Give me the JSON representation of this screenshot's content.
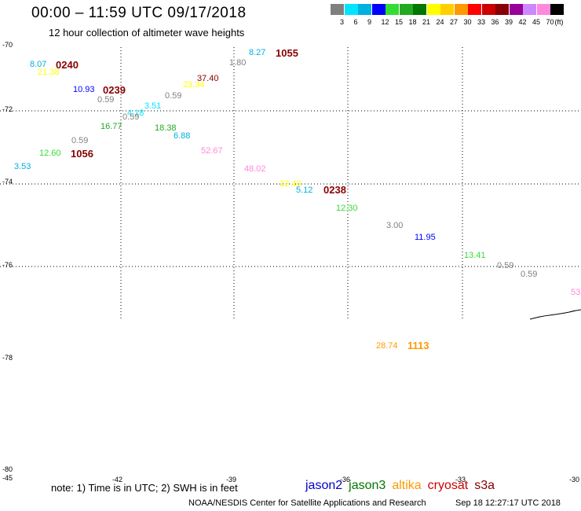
{
  "title": "00:00 – 11:59 UTC 09/17/2018",
  "subtitle": "12 hour collection of altimeter wave heights",
  "legend": {
    "unit": "(ft)",
    "bins": [
      {
        "label": "3",
        "color": "#808080"
      },
      {
        "label": "6",
        "color": "#00e5ff"
      },
      {
        "label": "9",
        "color": "#00b0e0"
      },
      {
        "label": "12",
        "color": "#0000ff"
      },
      {
        "label": "15",
        "color": "#33dd33"
      },
      {
        "label": "18",
        "color": "#22aa22"
      },
      {
        "label": "21",
        "color": "#007700"
      },
      {
        "label": "24",
        "color": "#ffff00"
      },
      {
        "label": "27",
        "color": "#ffd000"
      },
      {
        "label": "30",
        "color": "#ff9900"
      },
      {
        "label": "33",
        "color": "#ff0000"
      },
      {
        "label": "36",
        "color": "#cc0000"
      },
      {
        "label": "39",
        "color": "#880000"
      },
      {
        "label": "42",
        "color": "#990099"
      },
      {
        "label": "45",
        "color": "#cc88ff"
      },
      {
        "label": "70",
        "color": "#ff88dd"
      },
      {
        "label": "",
        "color": "#000000"
      }
    ]
  },
  "axes": {
    "lat_labels": [
      "-70",
      "-72",
      "-74",
      "-76",
      "-78",
      "-80"
    ],
    "lon_labels": [
      "-45",
      "-42",
      "-39",
      "-36",
      "-33",
      "-30"
    ]
  },
  "observations": [
    {
      "text": "8.07",
      "color": "#00b0e0"
    },
    {
      "text": "0240",
      "color": "#880000",
      "kind": "time"
    },
    {
      "text": "21.38",
      "color": "#ffff00"
    },
    {
      "text": "10.93",
      "color": "#0000ff"
    },
    {
      "text": "0239",
      "color": "#880000",
      "kind": "time"
    },
    {
      "text": "0.59",
      "color": "#808080"
    },
    {
      "text": "1.80",
      "color": "#808080"
    },
    {
      "text": "8.27",
      "color": "#00b0e0"
    },
    {
      "text": "1055",
      "color": "#880000",
      "kind": "time"
    },
    {
      "text": "37.40",
      "color": "#880000"
    },
    {
      "text": "23.34",
      "color": "#ffff00"
    },
    {
      "text": "0.59",
      "color": "#808080"
    },
    {
      "text": "3.51",
      "color": "#00e5ff"
    },
    {
      "text": "4.18",
      "color": "#00e5ff"
    },
    {
      "text": "0.59",
      "color": "#808080"
    },
    {
      "text": "16.77",
      "color": "#22aa22"
    },
    {
      "text": "18.38",
      "color": "#22aa22"
    },
    {
      "text": "6.88",
      "color": "#00b0e0"
    },
    {
      "text": "0.59",
      "color": "#808080"
    },
    {
      "text": "52.67",
      "color": "#ff88dd"
    },
    {
      "text": "12.60",
      "color": "#33dd33"
    },
    {
      "text": "1056",
      "color": "#880000",
      "kind": "time"
    },
    {
      "text": "3.53",
      "color": "#00b0e0"
    },
    {
      "text": "48.02",
      "color": "#ff88dd"
    },
    {
      "text": "22.40",
      "color": "#ffff00"
    },
    {
      "text": "5.12",
      "color": "#00b0e0"
    },
    {
      "text": "0238",
      "color": "#880000",
      "kind": "time"
    },
    {
      "text": "12.30",
      "color": "#33dd33"
    },
    {
      "text": "3.00",
      "color": "#808080"
    },
    {
      "text": "11.95",
      "color": "#0000ff"
    },
    {
      "text": "13.41",
      "color": "#33dd33"
    },
    {
      "text": "0.59",
      "color": "#808080"
    },
    {
      "text": "0.59",
      "color": "#808080"
    },
    {
      "text": "53",
      "color": "#ff88dd"
    },
    {
      "text": "28.74",
      "color": "#ff9900"
    },
    {
      "text": "1113",
      "color": "#ff9900",
      "kind": "time"
    }
  ],
  "note": "note: 1) Time is in UTC; 2) SWH is in feet",
  "satellites": [
    {
      "name": "jason2",
      "color": "#0000cc"
    },
    {
      "name": "jason3",
      "color": "#007700"
    },
    {
      "name": "altika",
      "color": "#ff9900"
    },
    {
      "name": "cryosat",
      "color": "#cc0000"
    },
    {
      "name": "s3a",
      "color": "#880000"
    }
  ],
  "footer": {
    "credit": "NOAA/NESDIS Center for Satellite Applications and Research",
    "timestamp": "Sep 18 12:27:17 UTC 2018"
  }
}
